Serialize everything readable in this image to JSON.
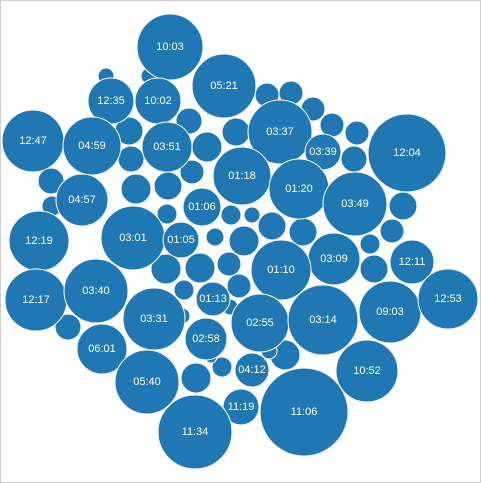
{
  "chart_data": {
    "type": "bubble",
    "color": "#1f77b4",
    "stroke_color": "#ffffff",
    "label_color": "#ffffff",
    "labeled_points": [
      "10:03",
      "05:21",
      "12:35",
      "10:02",
      "03:37",
      "12:47",
      "04:59",
      "03:51",
      "03:39",
      "12:04",
      "01:18",
      "01:20",
      "04:57",
      "03:49",
      "01:06",
      "12:19",
      "03:01",
      "01:05",
      "03:09",
      "01:10",
      "12:11",
      "12:17",
      "03:40",
      "01:13",
      "03:31",
      "02:55",
      "03:14",
      "09:03",
      "12:53",
      "06:01",
      "02:58",
      "10:52",
      "05:40",
      "04:12",
      "11:19",
      "11:06",
      "11:34"
    ],
    "unlabeled_point_count": 42
  }
}
